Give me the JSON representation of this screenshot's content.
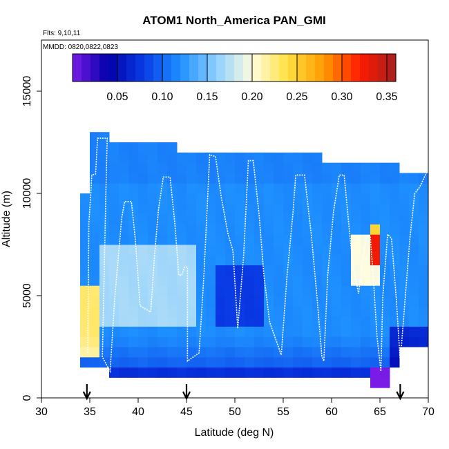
{
  "chart_data": {
    "type": "heatmap",
    "title": "ATOM1 North_America PAN_GMI",
    "flights_label": "Flts: 9,10,11",
    "dates_label": "MMDD: 0820,0822,0823",
    "xlabel": "Latitude (deg N)",
    "ylabel": "Altitude (m)",
    "xlim": [
      30,
      70
    ],
    "ylim": [
      0,
      17500
    ],
    "x_ticks": [
      "30",
      "35",
      "40",
      "45",
      "50",
      "55",
      "60",
      "65",
      "70"
    ],
    "y_ticks": [
      "0",
      "5000",
      "10000",
      "15000"
    ],
    "colorbar": {
      "range": [
        0.0,
        0.36
      ],
      "tick_labels": [
        "0.05",
        "0.10",
        "0.15",
        "0.20",
        "0.25",
        "0.30",
        "0.35"
      ],
      "tick_values": [
        0.05,
        0.1,
        0.15,
        0.2,
        0.25,
        0.3,
        0.35
      ],
      "colors": [
        "#7a1be6",
        "#0000aa",
        "#0a3ce6",
        "#1e90ff",
        "#8ecfff",
        "#fffce0",
        "#ffe040",
        "#ff9a00",
        "#ff1a00",
        "#a52020"
      ]
    },
    "arrow_latitudes": [
      34.7,
      45.0,
      67.1
    ],
    "flight_track": [
      [
        34.8,
        2200
      ],
      [
        34.9,
        8500
      ],
      [
        35.1,
        10000
      ],
      [
        35.2,
        10900
      ],
      [
        35.6,
        10950
      ],
      [
        35.8,
        12700
      ],
      [
        36.8,
        12700
      ],
      [
        36.7,
        10800
      ],
      [
        36.5,
        6400
      ],
      [
        36.3,
        2000
      ],
      [
        37.1,
        1300
      ],
      [
        37.6,
        5000
      ],
      [
        38.3,
        8800
      ],
      [
        38.6,
        9600
      ],
      [
        39.3,
        9600
      ],
      [
        39.7,
        7800
      ],
      [
        40.2,
        4500
      ],
      [
        41.3,
        4200
      ],
      [
        41.7,
        7000
      ],
      [
        42.1,
        9200
      ],
      [
        42.6,
        10800
      ],
      [
        43.3,
        10800
      ],
      [
        43.8,
        8500
      ],
      [
        44.2,
        6000
      ],
      [
        44.5,
        6000
      ],
      [
        44.8,
        6400
      ],
      [
        45.1,
        6400
      ],
      [
        45.1,
        4300
      ],
      [
        45.1,
        1800
      ],
      [
        46.3,
        2200
      ],
      [
        46.8,
        6000
      ],
      [
        47.4,
        11900
      ],
      [
        48.0,
        11800
      ],
      [
        48.6,
        9800
      ],
      [
        49.3,
        8000
      ],
      [
        49.8,
        7200
      ],
      [
        50.3,
        3400
      ],
      [
        50.9,
        6900
      ],
      [
        51.4,
        11600
      ],
      [
        51.9,
        11600
      ],
      [
        52.5,
        9000
      ],
      [
        53.0,
        6000
      ],
      [
        53.6,
        3700
      ],
      [
        54.8,
        2100
      ],
      [
        55.4,
        6000
      ],
      [
        56.0,
        9000
      ],
      [
        56.3,
        10900
      ],
      [
        57.2,
        10900
      ],
      [
        57.9,
        8000
      ],
      [
        58.5,
        4900
      ],
      [
        59.0,
        2000
      ],
      [
        59.2,
        1800
      ],
      [
        59.6,
        6000
      ],
      [
        60.2,
        9100
      ],
      [
        60.8,
        10900
      ],
      [
        61.3,
        10900
      ],
      [
        61.8,
        8400
      ],
      [
        62.2,
        6500
      ],
      [
        62.8,
        5100
      ],
      [
        63.1,
        6400
      ],
      [
        63.6,
        7900
      ],
      [
        64.0,
        7900
      ],
      [
        64.3,
        6000
      ],
      [
        64.7,
        3000
      ],
      [
        65.1,
        1300
      ],
      [
        65.3,
        5000
      ],
      [
        65.8,
        8000
      ],
      [
        66.2,
        7800
      ],
      [
        66.7,
        4800
      ],
      [
        67.1,
        1800
      ],
      [
        67.6,
        4800
      ],
      [
        68.1,
        7800
      ],
      [
        68.6,
        10000
      ],
      [
        69.1,
        10300
      ],
      [
        69.6,
        10800
      ],
      [
        70.0,
        11200
      ]
    ]
  }
}
